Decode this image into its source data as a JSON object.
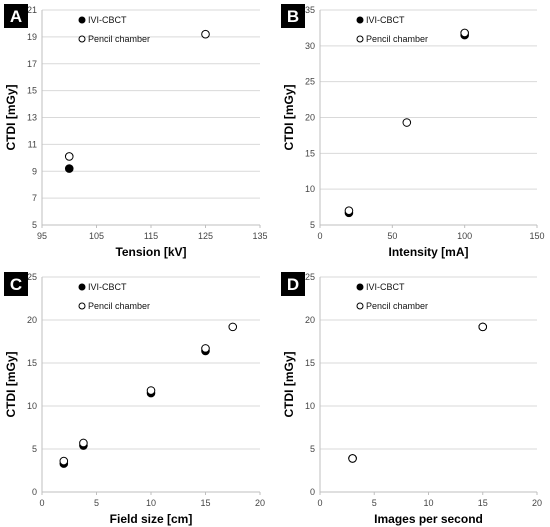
{
  "chart_data": [
    {
      "panel": "A",
      "type": "scatter",
      "xlabel": "Tension [kV]",
      "ylabel": "CTDI [mGy]",
      "xlim": [
        95,
        135
      ],
      "ylim": [
        5,
        21
      ],
      "xticks": [
        95,
        105,
        115,
        125,
        135
      ],
      "yticks": [
        5,
        7,
        9,
        11,
        13,
        15,
        17,
        19,
        21
      ],
      "grid": "horizontal",
      "legend": "top-left",
      "series": [
        {
          "name": "IVI-CBCT",
          "marker": "filled",
          "x": [
            100
          ],
          "y": [
            9.2
          ]
        },
        {
          "name": "Pencil chamber",
          "marker": "open",
          "x": [
            100,
            125
          ],
          "y": [
            10.1,
            19.2
          ]
        }
      ]
    },
    {
      "panel": "B",
      "type": "scatter",
      "xlabel": "Intensity [mA]",
      "ylabel": "CTDI [mGy]",
      "xlim": [
        0,
        150
      ],
      "ylim": [
        5,
        35
      ],
      "xticks": [
        0,
        50,
        100,
        150
      ],
      "yticks": [
        5,
        10,
        15,
        20,
        25,
        30,
        35
      ],
      "grid": "horizontal",
      "legend": "top-left",
      "series": [
        {
          "name": "IVI-CBCT",
          "marker": "filled",
          "x": [
            20,
            100
          ],
          "y": [
            6.7,
            31.5
          ]
        },
        {
          "name": "Pencil chamber",
          "marker": "open",
          "x": [
            20,
            60,
            100
          ],
          "y": [
            7.0,
            19.3,
            31.8
          ]
        }
      ]
    },
    {
      "panel": "C",
      "type": "scatter",
      "xlabel": "Field size [cm]",
      "ylabel": "CTDI [mGy]",
      "xlim": [
        0,
        20
      ],
      "ylim": [
        0,
        25
      ],
      "xticks": [
        0,
        5,
        10,
        15,
        20
      ],
      "yticks": [
        0,
        5,
        10,
        15,
        20,
        25
      ],
      "grid": "horizontal",
      "legend": "top-left",
      "series": [
        {
          "name": "IVI-CBCT",
          "marker": "filled",
          "x": [
            2,
            3.8,
            10,
            15
          ],
          "y": [
            3.3,
            5.4,
            11.5,
            16.4
          ]
        },
        {
          "name": "Pencil chamber",
          "marker": "open",
          "x": [
            2,
            3.8,
            10,
            15,
            17.5
          ],
          "y": [
            3.6,
            5.7,
            11.8,
            16.7,
            19.2
          ]
        }
      ]
    },
    {
      "panel": "D",
      "type": "scatter",
      "xlabel": "Images per second",
      "ylabel": "CTDI [mGy]",
      "xlim": [
        0,
        20
      ],
      "ylim": [
        0,
        25
      ],
      "xticks": [
        0,
        5,
        10,
        15,
        20
      ],
      "yticks": [
        0,
        5,
        10,
        15,
        20,
        25
      ],
      "grid": "horizontal",
      "legend": "top-left",
      "series": [
        {
          "name": "IVI-CBCT",
          "marker": "filled",
          "x": [
            3,
            15
          ],
          "y": [
            3.9,
            19.2
          ]
        },
        {
          "name": "Pencil chamber",
          "marker": "open",
          "x": [
            3,
            15
          ],
          "y": [
            3.9,
            19.2
          ]
        }
      ]
    }
  ],
  "colors": {
    "badge": "#000000",
    "grid": "#d9d9d9",
    "axis": "#bfbfbf",
    "filled_marker": "#000000",
    "open_marker_fill": "#ffffff"
  }
}
